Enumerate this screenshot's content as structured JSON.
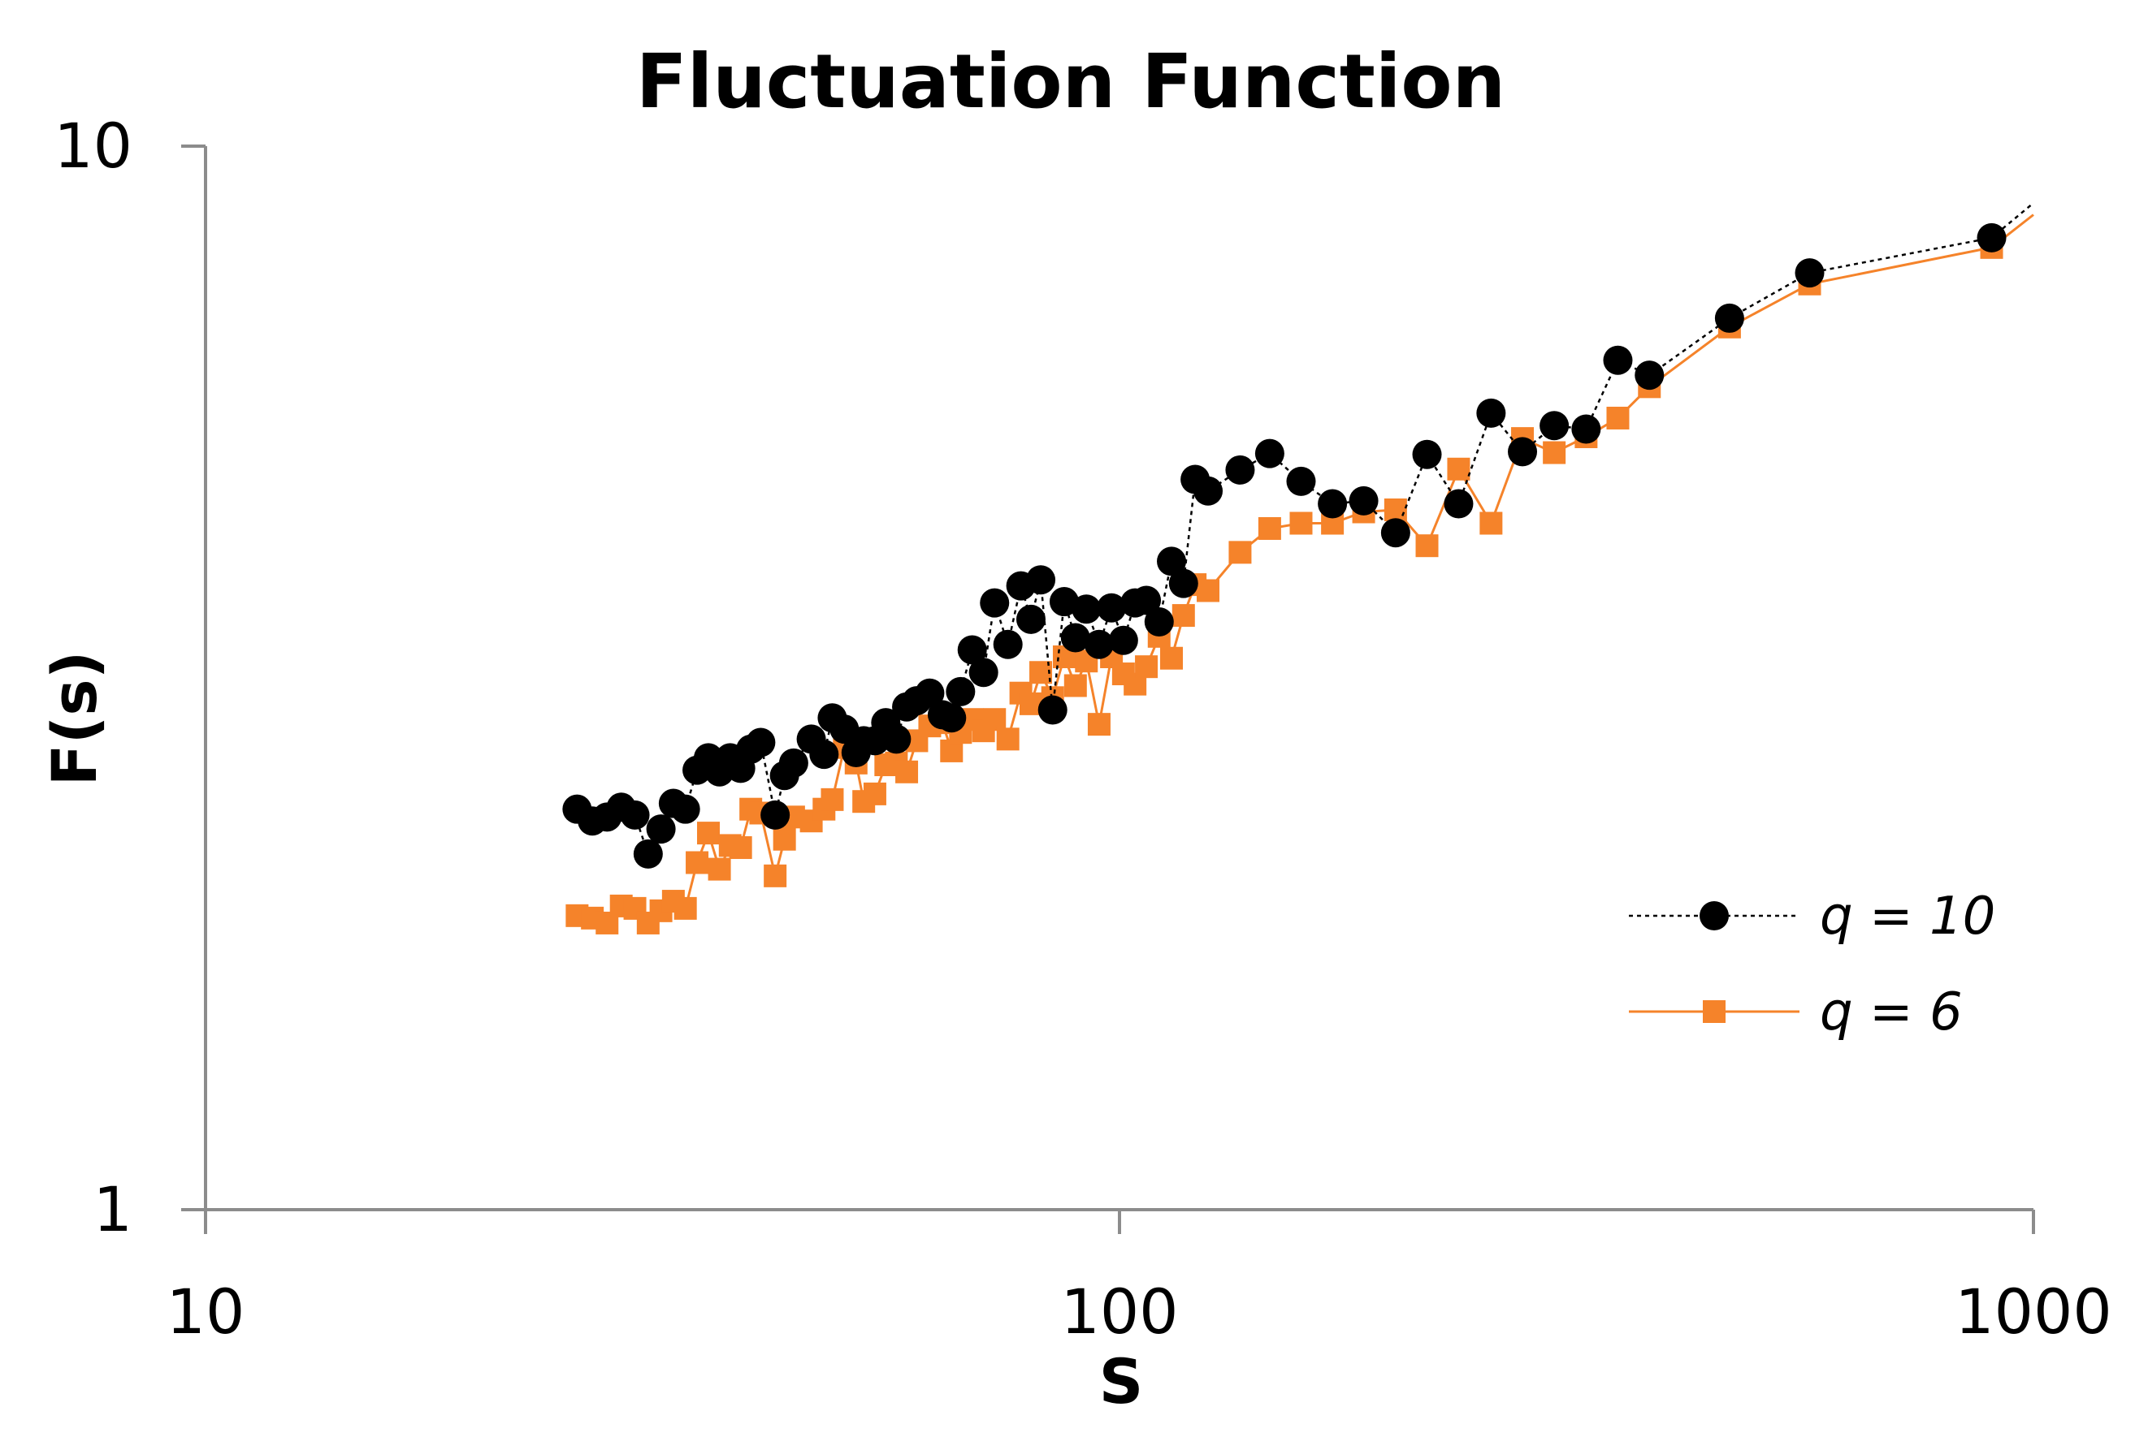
{
  "chart_data": {
    "type": "line",
    "title": "Fluctuation Function",
    "xlabel": "S",
    "ylabel": "F(s)",
    "xscale": "log",
    "yscale": "log",
    "xlim": [
      10,
      1000
    ],
    "ylim": [
      1,
      10
    ],
    "x_ticks": [
      10,
      100,
      1000
    ],
    "x_tick_labels": [
      "10",
      "100",
      "1000"
    ],
    "y_ticks": [
      1,
      10
    ],
    "y_tick_labels": [
      "1",
      "10"
    ],
    "grid": false,
    "legend_position": "bottom-right",
    "series": [
      {
        "name": "q = 10",
        "color": "#000000",
        "marker": "circle",
        "line_style": "dotted",
        "points": [
          [
            25.5,
            2.38
          ],
          [
            26.5,
            2.32
          ],
          [
            27.5,
            2.34
          ],
          [
            28.5,
            2.39
          ],
          [
            29.5,
            2.35
          ],
          [
            30.5,
            2.16
          ],
          [
            31.5,
            2.28
          ],
          [
            32.5,
            2.41
          ],
          [
            33.5,
            2.38
          ],
          [
            34.5,
            2.59
          ],
          [
            35.5,
            2.66
          ],
          [
            36.5,
            2.58
          ],
          [
            37.5,
            2.66
          ],
          [
            38.5,
            2.6
          ],
          [
            39.5,
            2.71
          ],
          [
            40.5,
            2.75
          ],
          [
            42.0,
            2.35
          ],
          [
            43.0,
            2.56
          ],
          [
            44.0,
            2.63
          ],
          [
            46.0,
            2.77
          ],
          [
            47.5,
            2.68
          ],
          [
            48.5,
            2.9
          ],
          [
            50.0,
            2.83
          ],
          [
            51.5,
            2.69
          ],
          [
            52.5,
            2.76
          ],
          [
            54.0,
            2.76
          ],
          [
            55.5,
            2.87
          ],
          [
            57.0,
            2.77
          ],
          [
            58.5,
            2.97
          ],
          [
            60.0,
            3.01
          ],
          [
            62.0,
            3.06
          ],
          [
            64.0,
            2.92
          ],
          [
            65.5,
            2.9
          ],
          [
            67.0,
            3.07
          ],
          [
            69.0,
            3.36
          ],
          [
            71.0,
            3.2
          ],
          [
            73.0,
            3.72
          ],
          [
            75.5,
            3.4
          ],
          [
            78.0,
            3.86
          ],
          [
            80.0,
            3.59
          ],
          [
            82.0,
            3.91
          ],
          [
            84.5,
            2.95
          ],
          [
            87.0,
            3.73
          ],
          [
            89.5,
            3.45
          ],
          [
            92.0,
            3.67
          ],
          [
            95.0,
            3.4
          ],
          [
            98.0,
            3.68
          ],
          [
            101.0,
            3.43
          ],
          [
            104.0,
            3.72
          ],
          [
            107.0,
            3.74
          ],
          [
            110.5,
            3.57
          ],
          [
            114.0,
            4.07
          ],
          [
            117.5,
            3.88
          ],
          [
            121.0,
            4.86
          ],
          [
            125.0,
            4.74
          ],
          [
            135.5,
            4.96
          ],
          [
            146.0,
            5.14
          ],
          [
            158.0,
            4.84
          ],
          [
            171.0,
            4.61
          ],
          [
            185.0,
            4.64
          ],
          [
            200.5,
            4.33
          ],
          [
            217.0,
            5.13
          ],
          [
            235.0,
            4.61
          ],
          [
            255.0,
            5.61
          ],
          [
            276.0,
            5.16
          ],
          [
            299.0,
            5.46
          ],
          [
            324.0,
            5.42
          ],
          [
            351.0,
            6.29
          ],
          [
            380.0,
            6.09
          ],
          [
            465.0,
            6.89
          ],
          [
            569.0,
            7.6
          ],
          [
            900.0,
            8.2
          ]
        ]
      },
      {
        "name": "q = 6",
        "color": "#F5832A",
        "marker": "square",
        "line_style": "solid",
        "points": [
          [
            25.5,
            1.89
          ],
          [
            26.5,
            1.88
          ],
          [
            27.5,
            1.86
          ],
          [
            28.5,
            1.93
          ],
          [
            29.5,
            1.92
          ],
          [
            30.5,
            1.86
          ],
          [
            31.5,
            1.91
          ],
          [
            32.5,
            1.95
          ],
          [
            33.5,
            1.92
          ],
          [
            34.5,
            2.12
          ],
          [
            35.5,
            2.26
          ],
          [
            36.5,
            2.09
          ],
          [
            37.5,
            2.2
          ],
          [
            38.5,
            2.19
          ],
          [
            39.5,
            2.38
          ],
          [
            40.5,
            2.36
          ],
          [
            42.0,
            2.06
          ],
          [
            43.0,
            2.23
          ],
          [
            44.0,
            2.34
          ],
          [
            46.0,
            2.32
          ],
          [
            47.5,
            2.38
          ],
          [
            48.5,
            2.43
          ],
          [
            50.0,
            2.72
          ],
          [
            51.5,
            2.63
          ],
          [
            52.5,
            2.42
          ],
          [
            54.0,
            2.46
          ],
          [
            55.5,
            2.62
          ],
          [
            57.0,
            2.63
          ],
          [
            58.5,
            2.58
          ],
          [
            60.0,
            2.76
          ],
          [
            62.0,
            2.85
          ],
          [
            64.0,
            2.87
          ],
          [
            65.5,
            2.7
          ],
          [
            67.0,
            2.81
          ],
          [
            69.0,
            2.89
          ],
          [
            71.0,
            2.82
          ],
          [
            73.0,
            2.89
          ],
          [
            75.5,
            2.77
          ],
          [
            78.0,
            3.06
          ],
          [
            80.0,
            2.99
          ],
          [
            82.0,
            3.2
          ],
          [
            84.5,
            3.03
          ],
          [
            87.0,
            3.31
          ],
          [
            89.5,
            3.11
          ],
          [
            92.0,
            3.28
          ],
          [
            95.0,
            2.86
          ],
          [
            98.0,
            3.31
          ],
          [
            101.0,
            3.19
          ],
          [
            104.0,
            3.12
          ],
          [
            107.0,
            3.24
          ],
          [
            110.5,
            3.46
          ],
          [
            114.0,
            3.3
          ],
          [
            117.5,
            3.62
          ],
          [
            121.0,
            3.87
          ],
          [
            125.0,
            3.82
          ],
          [
            135.5,
            4.15
          ],
          [
            146.0,
            4.37
          ],
          [
            158.0,
            4.42
          ],
          [
            171.0,
            4.42
          ],
          [
            185.0,
            4.53
          ],
          [
            200.5,
            4.55
          ],
          [
            217.0,
            4.21
          ],
          [
            235.0,
            4.97
          ],
          [
            255.0,
            4.42
          ],
          [
            276.0,
            5.31
          ],
          [
            299.0,
            5.15
          ],
          [
            324.0,
            5.33
          ],
          [
            351.0,
            5.55
          ],
          [
            380.0,
            5.94
          ],
          [
            465.0,
            6.76
          ],
          [
            569.0,
            7.42
          ],
          [
            900.0,
            8.03
          ]
        ]
      }
    ],
    "curve_ends": [
      {
        "series": 0,
        "x": 1000,
        "y": 8.84
      },
      {
        "series": 1,
        "x": 1000,
        "y": 8.62
      }
    ]
  }
}
